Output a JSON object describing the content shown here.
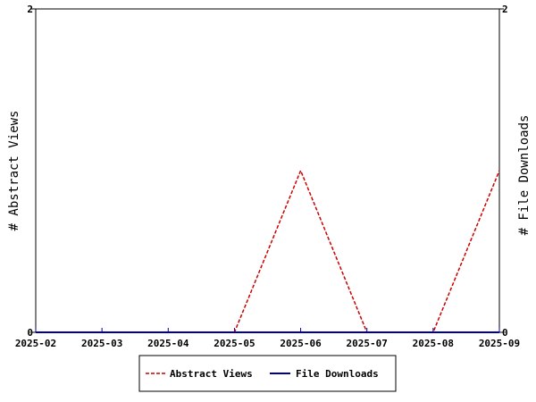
{
  "chart_data": {
    "type": "line",
    "categories": [
      "2025-02",
      "2025-03",
      "2025-04",
      "2025-05",
      "2025-06",
      "2025-07",
      "2025-08",
      "2025-09"
    ],
    "series": [
      {
        "name": "Abstract Views",
        "values": [
          0,
          0,
          0,
          0,
          1,
          0,
          0,
          1
        ],
        "color": "#cc0000",
        "style": "dashed",
        "axis": "left"
      },
      {
        "name": "File Downloads",
        "values": [
          0,
          0,
          0,
          0,
          0,
          0,
          0,
          0
        ],
        "color": "#000099",
        "style": "solid",
        "axis": "right"
      }
    ],
    "ylabel": "# Abstract Views",
    "y2label": "# File Downloads",
    "ylim": [
      0,
      2
    ],
    "y2lim": [
      0,
      2
    ],
    "yticks": [
      "0",
      "2"
    ],
    "y2ticks": [
      "0",
      "2"
    ],
    "grid": false,
    "legend_position": "bottom"
  }
}
